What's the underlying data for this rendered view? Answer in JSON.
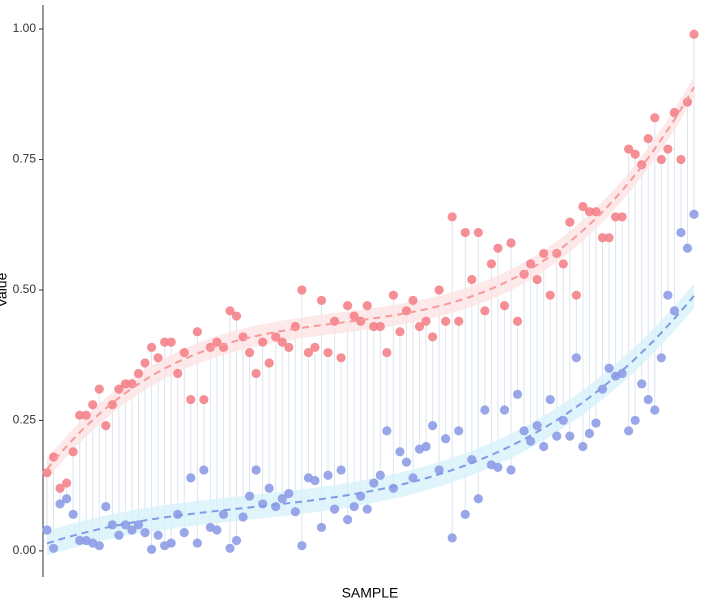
{
  "chart_data": {
    "type": "dumbbell",
    "x_label": "SAMPLE",
    "y_label": "Value",
    "ylim": [
      -0.05,
      1.046
    ],
    "yticks": [
      {
        "value": 0,
        "label": "0.00"
      },
      {
        "value": 0.25,
        "label": "0.25"
      },
      {
        "value": 0.5,
        "label": "0.50"
      },
      {
        "value": 0.75,
        "label": "0.75"
      },
      {
        "value": 1,
        "label": "1.00"
      }
    ],
    "smooth": true,
    "connector_color": "#dce5ee",
    "series": [
      {
        "color": "#f4828a",
        "smooth_color": "#f79a9a",
        "band_color": "#fde3e3",
        "values": [
          0.15,
          0.18,
          0.12,
          0.13,
          0.19,
          0.26,
          0.26,
          0.28,
          0.31,
          0.24,
          0.28,
          0.31,
          0.32,
          0.32,
          0.34,
          0.36,
          0.39,
          0.37,
          0.4,
          0.4,
          0.34,
          0.38,
          0.29,
          0.42,
          0.29,
          0.39,
          0.4,
          0.39,
          0.46,
          0.45,
          0.41,
          0.38,
          0.34,
          0.4,
          0.36,
          0.41,
          0.4,
          0.39,
          0.43,
          0.5,
          0.38,
          0.39,
          0.48,
          0.38,
          0.44,
          0.37,
          0.47,
          0.45,
          0.44,
          0.47,
          0.43,
          0.43,
          0.38,
          0.49,
          0.42,
          0.46,
          0.48,
          0.43,
          0.44,
          0.41,
          0.5,
          0.44,
          0.64,
          0.44,
          0.61,
          0.52,
          0.61,
          0.46,
          0.55,
          0.58,
          0.47,
          0.59,
          0.44,
          0.53,
          0.55,
          0.52,
          0.57,
          0.49,
          0.57,
          0.55,
          0.63,
          0.49,
          0.66,
          0.65,
          0.65,
          0.6,
          0.6,
          0.64,
          0.64,
          0.77,
          0.76,
          0.74,
          0.79,
          0.83,
          0.75,
          0.77,
          0.84,
          0.75,
          0.86,
          0.99
        ]
      },
      {
        "color": "#8e9ce6",
        "smooth_color": "#7f9ce6",
        "band_color": "#d8f1fa",
        "values": [
          0.04,
          0.005,
          0.09,
          0.1,
          0.07,
          0.02,
          0.02,
          0.015,
          0.01,
          0.085,
          0.05,
          0.03,
          0.05,
          0.04,
          0.05,
          0.035,
          0.003,
          0.03,
          0.01,
          0.015,
          0.07,
          0.035,
          0.14,
          0.015,
          0.155,
          0.045,
          0.04,
          0.07,
          0.005,
          0.02,
          0.065,
          0.105,
          0.155,
          0.09,
          0.12,
          0.085,
          0.1,
          0.11,
          0.075,
          0.01,
          0.14,
          0.135,
          0.045,
          0.145,
          0.08,
          0.155,
          0.06,
          0.085,
          0.105,
          0.08,
          0.13,
          0.145,
          0.23,
          0.12,
          0.19,
          0.17,
          0.14,
          0.195,
          0.2,
          0.24,
          0.155,
          0.215,
          0.025,
          0.23,
          0.07,
          0.175,
          0.1,
          0.27,
          0.165,
          0.16,
          0.27,
          0.155,
          0.3,
          0.23,
          0.21,
          0.24,
          0.2,
          0.29,
          0.22,
          0.25,
          0.22,
          0.37,
          0.2,
          0.225,
          0.245,
          0.31,
          0.35,
          0.335,
          0.34,
          0.23,
          0.25,
          0.32,
          0.29,
          0.27,
          0.37,
          0.49,
          0.46,
          0.61,
          0.58,
          0.645
        ]
      }
    ]
  }
}
